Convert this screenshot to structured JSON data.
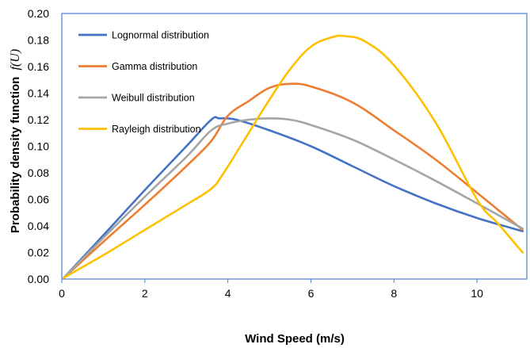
{
  "chart_data": {
    "type": "line",
    "title": "",
    "xlabel": "Wind Speed (m/s)",
    "ylabel": "Probability density function",
    "ylabel_symbol": "f(U)",
    "xlim": [
      0,
      11.2
    ],
    "ylim": [
      0,
      0.2
    ],
    "xticks": [
      0,
      2,
      4,
      6,
      8,
      10
    ],
    "xtick_labels": [
      "0",
      "2",
      "4",
      "6",
      "8",
      "10"
    ],
    "yticks": [
      0,
      0.02,
      0.04,
      0.06,
      0.08,
      0.1,
      0.12,
      0.14,
      0.16,
      0.18,
      0.2
    ],
    "ytick_labels": [
      "0.00",
      "0.02",
      "0.04",
      "0.06",
      "0.08",
      "0.10",
      "0.12",
      "0.14",
      "0.16",
      "0.18",
      "0.20"
    ],
    "grid": false,
    "legend_position": "top-left",
    "series": [
      {
        "name": "Lognormal distribution",
        "color": "#4472C4",
        "points": [
          [
            0.05,
            0.001
          ],
          [
            1,
            0.033
          ],
          [
            2,
            0.067
          ],
          [
            3,
            0.1
          ],
          [
            3.6,
            0.12
          ],
          [
            3.8,
            0.121
          ],
          [
            4.2,
            0.12
          ],
          [
            5,
            0.112
          ],
          [
            6,
            0.1
          ],
          [
            7,
            0.085
          ],
          [
            8,
            0.07
          ],
          [
            9,
            0.057
          ],
          [
            10,
            0.046
          ],
          [
            11.1,
            0.036
          ]
        ]
      },
      {
        "name": "Gamma distribution",
        "color": "#ED7D31",
        "points": [
          [
            0.05,
            0.001
          ],
          [
            1,
            0.028
          ],
          [
            2,
            0.056
          ],
          [
            3,
            0.085
          ],
          [
            3.6,
            0.104
          ],
          [
            4,
            0.123
          ],
          [
            4.5,
            0.134
          ],
          [
            5,
            0.144
          ],
          [
            5.5,
            0.147
          ],
          [
            6,
            0.145
          ],
          [
            7,
            0.133
          ],
          [
            8,
            0.112
          ],
          [
            9,
            0.09
          ],
          [
            10,
            0.065
          ],
          [
            11.1,
            0.037
          ]
        ]
      },
      {
        "name": "Weibull distribution",
        "color": "#A5A5A5",
        "points": [
          [
            0.05,
            0.001
          ],
          [
            1,
            0.031
          ],
          [
            2,
            0.062
          ],
          [
            3,
            0.092
          ],
          [
            3.6,
            0.112
          ],
          [
            4,
            0.117
          ],
          [
            4.5,
            0.12
          ],
          [
            5,
            0.121
          ],
          [
            5.5,
            0.12
          ],
          [
            6,
            0.116
          ],
          [
            7,
            0.105
          ],
          [
            8,
            0.09
          ],
          [
            9,
            0.074
          ],
          [
            10,
            0.057
          ],
          [
            11.1,
            0.038
          ]
        ]
      },
      {
        "name": "Rayleigh distribution",
        "color": "#FFC000",
        "points": [
          [
            0.05,
            0.001
          ],
          [
            1,
            0.018
          ],
          [
            2,
            0.037
          ],
          [
            3,
            0.056
          ],
          [
            3.6,
            0.068
          ],
          [
            3.9,
            0.08
          ],
          [
            4.5,
            0.11
          ],
          [
            5,
            0.135
          ],
          [
            5.5,
            0.158
          ],
          [
            6,
            0.175
          ],
          [
            6.5,
            0.182
          ],
          [
            6.8,
            0.183
          ],
          [
            7.3,
            0.179
          ],
          [
            8,
            0.161
          ],
          [
            9,
            0.118
          ],
          [
            10,
            0.06
          ],
          [
            10.5,
            0.042
          ],
          [
            11.1,
            0.02
          ]
        ]
      }
    ]
  }
}
